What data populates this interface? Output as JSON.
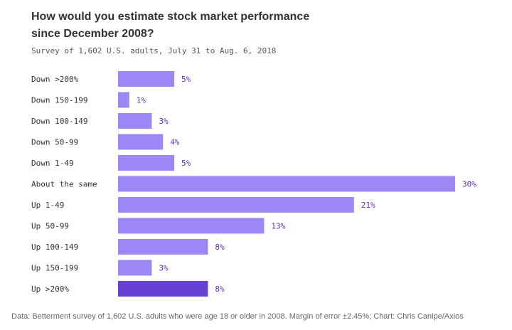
{
  "colors": {
    "bar": "#9d87f5",
    "bar_highlight": "#6940d4",
    "value_label": "#5a2fc2",
    "category_label": "#333333"
  },
  "chart_data": {
    "type": "bar",
    "orientation": "horizontal",
    "title": "How would you estimate stock market performance since December 2008?",
    "subtitle": "Survey of 1,602 U.S. adults, July 31 to Aug. 6, 2018",
    "categories": [
      "Down >200%",
      "Down 150-199",
      "Down 100-149",
      "Down 50-99",
      "Down 1-49",
      "About the same",
      "Up 1-49",
      "Up 50-99",
      "Up 100-149",
      "Up 150-199",
      "Up >200%"
    ],
    "values": [
      5,
      1,
      3,
      4,
      5,
      30,
      21,
      13,
      8,
      3,
      8
    ],
    "value_labels": [
      "5%",
      "1%",
      "3%",
      "4%",
      "5%",
      "30%",
      "21%",
      "13%",
      "8%",
      "3%",
      "8%"
    ],
    "highlighted_category": "Up >200%",
    "xlim": [
      0,
      30
    ],
    "grid": false,
    "legend": "none"
  },
  "footer": "Data: Betterment survey of 1,602 U.S. adults who were age 18 or older in 2008. Margin of error ±2.45%; Chart: Chris Canipe/Axios"
}
